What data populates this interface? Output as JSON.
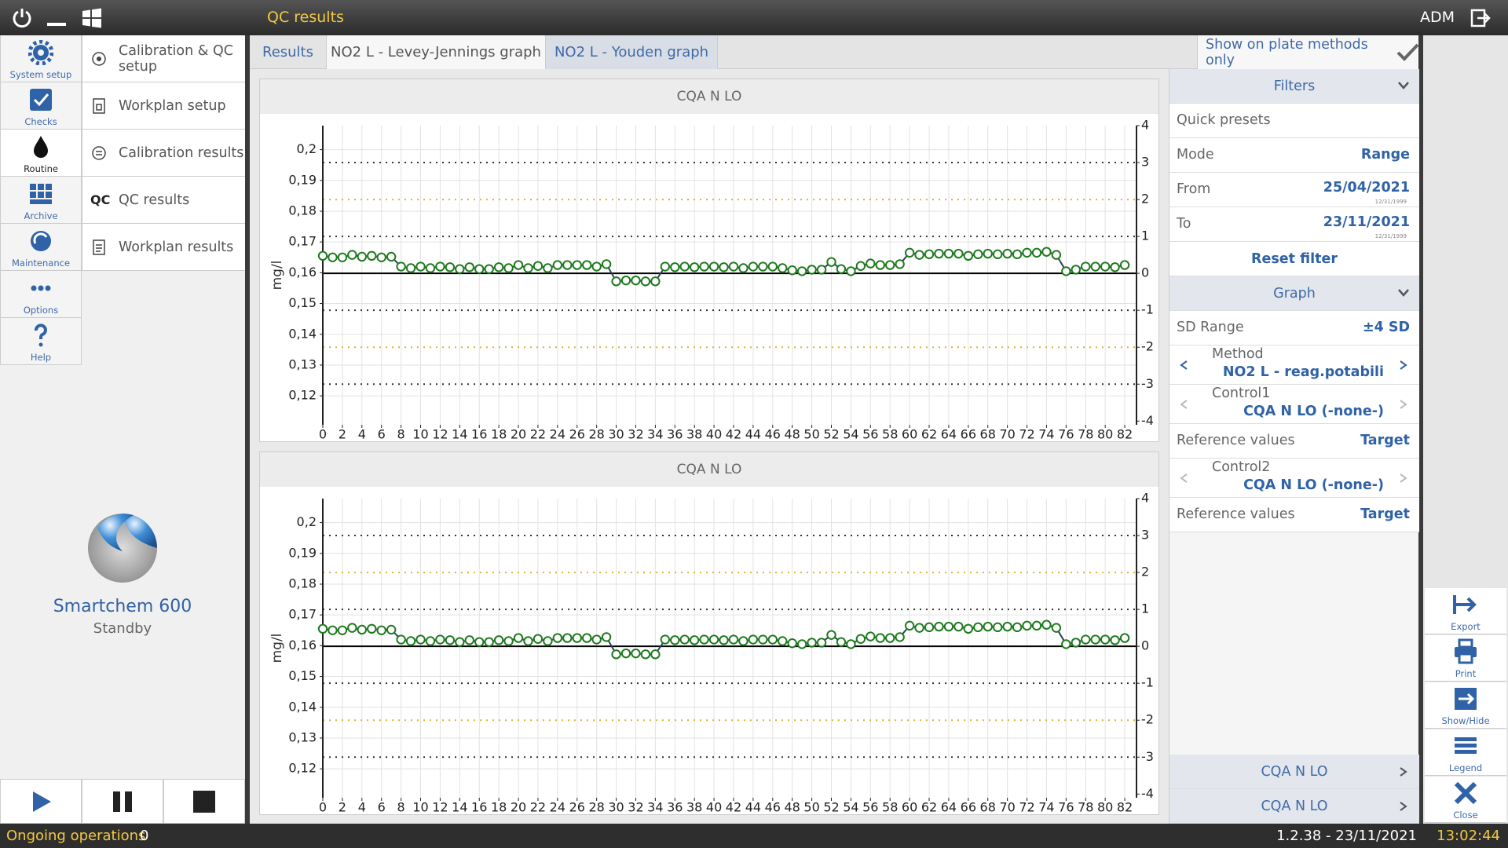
{
  "top_bar": {
    "title": "QC results",
    "user": "ADM"
  },
  "nav": [
    "System setup",
    "Checks",
    "Routine",
    "Archive",
    "Maintenance",
    "Options",
    "Help"
  ],
  "submenu": [
    {
      "label": "Calibration & QC setup"
    },
    {
      "label": "Workplan setup"
    },
    {
      "label": "Calibration results"
    },
    {
      "badge": "QC",
      "label": "QC results"
    },
    {
      "label": "Workplan results"
    }
  ],
  "device": {
    "name": "Smartchem 600",
    "status": "Standby"
  },
  "status_bar": {
    "ongoing_label": "Ongoing operations",
    "ongoing_count": 0,
    "version": "1.2.38 - 23/11/2021",
    "time": "13:02:44"
  },
  "tabs": [
    "Results",
    "NO2 L - Levey-Jennings graph",
    "NO2 L - Youden graph"
  ],
  "show_on_plate": "Show on plate methods only",
  "filters": {
    "header": "Filters",
    "quick_presets": "Quick presets",
    "mode_label": "Mode",
    "mode": "Range",
    "from_label": "From",
    "from": "25/04/2021",
    "to_label": "To",
    "to": "23/11/2021",
    "date_hint": "12/31/1999",
    "reset": "Reset filter"
  },
  "graph": {
    "header": "Graph",
    "sd_range_label": "SD Range",
    "sd_range": "±4 SD",
    "method_label": "Method",
    "method": "NO2 L - reag.potabili",
    "control1_label": "Control1",
    "control1": "CQA N LO (-none-)",
    "ref1_label": "Reference values",
    "ref1": "Target",
    "control2_label": "Control2",
    "control2": "CQA N LO (-none-)",
    "ref2_label": "Reference values",
    "ref2": "Target"
  },
  "legend_items": [
    "CQA N LO",
    "CQA N LO"
  ],
  "toolbar": [
    "Export",
    "Print",
    "Show/Hide",
    "Legend",
    "Close"
  ],
  "chart_data": [
    {
      "type": "line",
      "title": "CQA N LO",
      "y_label": "mg/l",
      "line_color": "#2e3f5c",
      "marker_color": "#1e7a1e",
      "x": [
        0,
        1,
        2,
        3,
        4,
        5,
        6,
        7,
        8,
        9,
        10,
        11,
        12,
        13,
        14,
        15,
        16,
        17,
        18,
        19,
        20,
        21,
        22,
        23,
        24,
        25,
        26,
        27,
        28,
        29,
        30,
        31,
        32,
        33,
        34,
        35,
        36,
        37,
        38,
        39,
        40,
        41,
        42,
        43,
        44,
        45,
        46,
        47,
        48,
        49,
        50,
        51,
        52,
        53,
        54,
        55,
        56,
        57,
        58,
        59,
        60,
        61,
        62,
        63,
        64,
        65,
        66,
        67,
        68,
        69,
        70,
        71,
        72,
        73,
        74,
        75,
        76,
        77,
        78,
        79,
        80,
        81,
        82
      ],
      "values": [
        0.1655,
        0.165,
        0.165,
        0.1658,
        0.1652,
        0.1655,
        0.165,
        0.1652,
        0.162,
        0.1615,
        0.162,
        0.1615,
        0.162,
        0.1618,
        0.1612,
        0.1618,
        0.1612,
        0.1612,
        0.1618,
        0.1615,
        0.1625,
        0.1615,
        0.1622,
        0.1615,
        0.1625,
        0.1625,
        0.1625,
        0.1625,
        0.162,
        0.1628,
        0.1572,
        0.1575,
        0.1575,
        0.1572,
        0.1572,
        0.162,
        0.1618,
        0.162,
        0.1618,
        0.162,
        0.162,
        0.1618,
        0.162,
        0.1615,
        0.162,
        0.162,
        0.162,
        0.1615,
        0.1608,
        0.1605,
        0.161,
        0.161,
        0.1635,
        0.1612,
        0.1605,
        0.1622,
        0.163,
        0.1625,
        0.1625,
        0.1628,
        0.1665,
        0.1658,
        0.166,
        0.1662,
        0.1662,
        0.1662,
        0.1655,
        0.166,
        0.1662,
        0.166,
        0.1662,
        0.166,
        0.1665,
        0.1665,
        0.1668,
        0.1658,
        0.1605,
        0.161,
        0.162,
        0.162,
        0.162,
        0.1618,
        0.1625
      ],
      "xlim": [
        0,
        83.2
      ],
      "xticks": [
        0,
        2,
        4,
        6,
        8,
        10,
        12,
        14,
        16,
        18,
        20,
        22,
        24,
        26,
        28,
        30,
        32,
        34,
        36,
        38,
        40,
        42,
        44,
        46,
        48,
        50,
        52,
        54,
        56,
        58,
        60,
        62,
        64,
        66,
        68,
        70,
        72,
        74,
        76,
        78,
        80,
        82
      ],
      "ylim": [
        0.1106,
        0.2078
      ],
      "yticks": [
        {
          "value": 0.12,
          "label": "0,12"
        },
        {
          "value": 0.13,
          "label": "0,13"
        },
        {
          "value": 0.14,
          "label": "0,14"
        },
        {
          "value": 0.15,
          "label": "0,15"
        },
        {
          "value": 0.16,
          "label": "0,16"
        },
        {
          "value": 0.17,
          "label": "0,17"
        },
        {
          "value": 0.18,
          "label": "0,18"
        },
        {
          "value": 0.19,
          "label": "0,19"
        },
        {
          "value": 0.2,
          "label": "0,2"
        }
      ],
      "y2lim": [
        -4.1,
        4.0
      ],
      "y2ticks": [
        -4,
        -3,
        -2,
        -1,
        0,
        1,
        2,
        3,
        4
      ],
      "reference_lines": [
        {
          "value": -3,
          "color": "#333333",
          "style": "dotted"
        },
        {
          "value": -2,
          "color": "#d9b530",
          "style": "dotted"
        },
        {
          "value": -1,
          "color": "#333333",
          "style": "dotted"
        },
        {
          "value": 0,
          "color": "#000000",
          "style": "solid"
        },
        {
          "value": 1,
          "color": "#333333",
          "style": "dotted"
        },
        {
          "value": 2,
          "color": "#d9b530",
          "style": "dotted"
        },
        {
          "value": 3,
          "color": "#333333",
          "style": "dotted"
        }
      ],
      "grid": true
    },
    {
      "type": "line",
      "title": "CQA N LO",
      "y_label": "mg/l",
      "line_color": "#2e3f5c",
      "marker_color": "#1e7a1e",
      "x": [
        0,
        1,
        2,
        3,
        4,
        5,
        6,
        7,
        8,
        9,
        10,
        11,
        12,
        13,
        14,
        15,
        16,
        17,
        18,
        19,
        20,
        21,
        22,
        23,
        24,
        25,
        26,
        27,
        28,
        29,
        30,
        31,
        32,
        33,
        34,
        35,
        36,
        37,
        38,
        39,
        40,
        41,
        42,
        43,
        44,
        45,
        46,
        47,
        48,
        49,
        50,
        51,
        52,
        53,
        54,
        55,
        56,
        57,
        58,
        59,
        60,
        61,
        62,
        63,
        64,
        65,
        66,
        67,
        68,
        69,
        70,
        71,
        72,
        73,
        74,
        75,
        76,
        77,
        78,
        79,
        80,
        81,
        82
      ],
      "values": [
        0.1655,
        0.165,
        0.165,
        0.1658,
        0.1652,
        0.1655,
        0.165,
        0.1652,
        0.162,
        0.1615,
        0.162,
        0.1615,
        0.162,
        0.1618,
        0.1612,
        0.1618,
        0.1612,
        0.1612,
        0.1618,
        0.1615,
        0.1625,
        0.1615,
        0.1622,
        0.1615,
        0.1625,
        0.1625,
        0.1625,
        0.1625,
        0.162,
        0.1628,
        0.1572,
        0.1575,
        0.1575,
        0.1572,
        0.1572,
        0.162,
        0.1618,
        0.162,
        0.1618,
        0.162,
        0.162,
        0.1618,
        0.162,
        0.1615,
        0.162,
        0.162,
        0.162,
        0.1615,
        0.1608,
        0.1605,
        0.161,
        0.161,
        0.1635,
        0.1612,
        0.1605,
        0.1622,
        0.163,
        0.1625,
        0.1625,
        0.1628,
        0.1665,
        0.1658,
        0.166,
        0.1662,
        0.1662,
        0.1662,
        0.1655,
        0.166,
        0.1662,
        0.166,
        0.1662,
        0.166,
        0.1665,
        0.1665,
        0.1668,
        0.1658,
        0.1605,
        0.161,
        0.162,
        0.162,
        0.162,
        0.1618,
        0.1625
      ],
      "xlim": [
        0,
        83.2
      ],
      "xticks": [
        0,
        2,
        4,
        6,
        8,
        10,
        12,
        14,
        16,
        18,
        20,
        22,
        24,
        26,
        28,
        30,
        32,
        34,
        36,
        38,
        40,
        42,
        44,
        46,
        48,
        50,
        52,
        54,
        56,
        58,
        60,
        62,
        64,
        66,
        68,
        70,
        72,
        74,
        76,
        78,
        80,
        82
      ],
      "ylim": [
        0.1106,
        0.2078
      ],
      "yticks": [
        {
          "value": 0.12,
          "label": "0,12"
        },
        {
          "value": 0.13,
          "label": "0,13"
        },
        {
          "value": 0.14,
          "label": "0,14"
        },
        {
          "value": 0.15,
          "label": "0,15"
        },
        {
          "value": 0.16,
          "label": "0,16"
        },
        {
          "value": 0.17,
          "label": "0,17"
        },
        {
          "value": 0.18,
          "label": "0,18"
        },
        {
          "value": 0.19,
          "label": "0,19"
        },
        {
          "value": 0.2,
          "label": "0,2"
        }
      ],
      "y2lim": [
        -4.1,
        4.0
      ],
      "y2ticks": [
        -4,
        -3,
        -2,
        -1,
        0,
        1,
        2,
        3,
        4
      ],
      "reference_lines": [
        {
          "value": -3,
          "color": "#333333",
          "style": "dotted"
        },
        {
          "value": -2,
          "color": "#d9b530",
          "style": "dotted"
        },
        {
          "value": -1,
          "color": "#333333",
          "style": "dotted"
        },
        {
          "value": 0,
          "color": "#000000",
          "style": "solid"
        },
        {
          "value": 1,
          "color": "#333333",
          "style": "dotted"
        },
        {
          "value": 2,
          "color": "#d9b530",
          "style": "dotted"
        },
        {
          "value": 3,
          "color": "#333333",
          "style": "dotted"
        }
      ],
      "grid": true
    }
  ]
}
